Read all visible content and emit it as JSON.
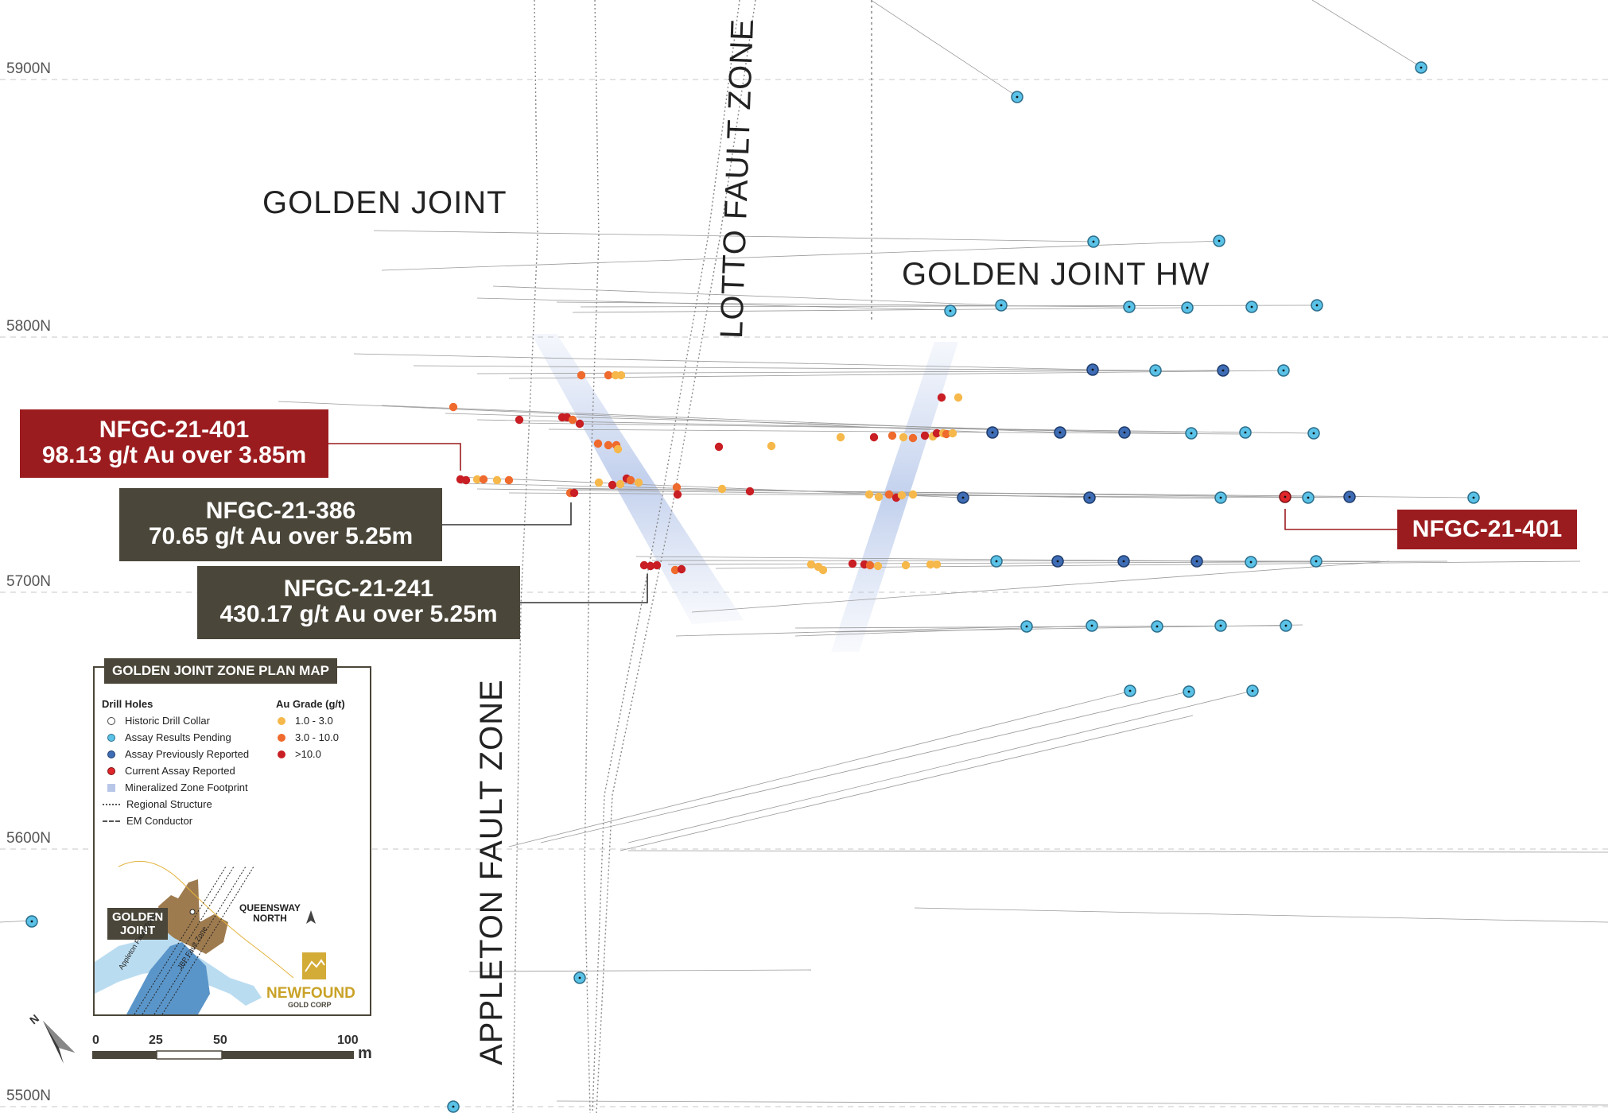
{
  "grid_lines": [
    "5900N",
    "5800N",
    "5700N",
    "5600N",
    "5500N"
  ],
  "regions": {
    "golden_joint": "GOLDEN JOINT",
    "golden_joint_hw": "GOLDEN JOINT HW",
    "lotto_fault_zone": "LOTTO FAULT ZONE",
    "appleton_fault_zone": "APPLETON FAULT ZONE"
  },
  "callouts": {
    "c401_left": {
      "hole": "NFGC-21-401",
      "result": "98.13 g/t Au over 3.85m"
    },
    "c386": {
      "hole": "NFGC-21-386",
      "result": "70.65 g/t Au over 5.25m"
    },
    "c241": {
      "hole": "NFGC-21-241",
      "result": "430.17 g/t Au over 5.25m"
    },
    "c401_right": {
      "hole": "NFGC-21-401"
    }
  },
  "legend": {
    "title": "GOLDEN JOINT ZONE PLAN MAP",
    "drill_holes_heading": "Drill Holes",
    "drill_holes": [
      {
        "label": "Historic Drill Collar",
        "icon": "historic-collar-icon"
      },
      {
        "label": "Assay Results Pending",
        "icon": "pending-collar-icon"
      },
      {
        "label": "Assay Previously Reported",
        "icon": "reported-collar-icon"
      },
      {
        "label": "Current Assay Reported",
        "icon": "current-collar-icon"
      },
      {
        "label": "Mineralized Zone Footprint",
        "icon": "footprint-icon"
      },
      {
        "label": "Regional Structure",
        "icon": "dotted-line-icon"
      },
      {
        "label": "EM Conductor",
        "icon": "dashed-line-icon"
      }
    ],
    "grade_heading": "Au Grade (g/t)",
    "grades": [
      {
        "label": "1.0 - 3.0",
        "color": "#f6b84a"
      },
      {
        "label": "3.0 - 10.0",
        "color": "#ef6a2d"
      },
      {
        "label": ">10.0",
        "color": "#c81e24"
      }
    ],
    "inset": {
      "golden_joint": [
        "GOLDEN",
        "JOINT"
      ],
      "queensway_north": [
        "QUEENSWAY",
        "NORTH"
      ],
      "appleton_fault": "Appleton Fault Zone",
      "jbp_fault": "JBP Fault Zone"
    },
    "logo": {
      "part1": "NEW",
      "part2": "FOUND",
      "sub": "GOLD CORP"
    }
  },
  "scale": {
    "ticks": [
      "0",
      "25",
      "50",
      "100"
    ],
    "unit": "m"
  },
  "north": "N",
  "colors": {
    "pending": "#5bc2e7",
    "previously_reported": "#3e6db5",
    "current": "#e0262b",
    "callout_red": "#9b1c1f",
    "callout_dark": "#4a4639"
  }
}
